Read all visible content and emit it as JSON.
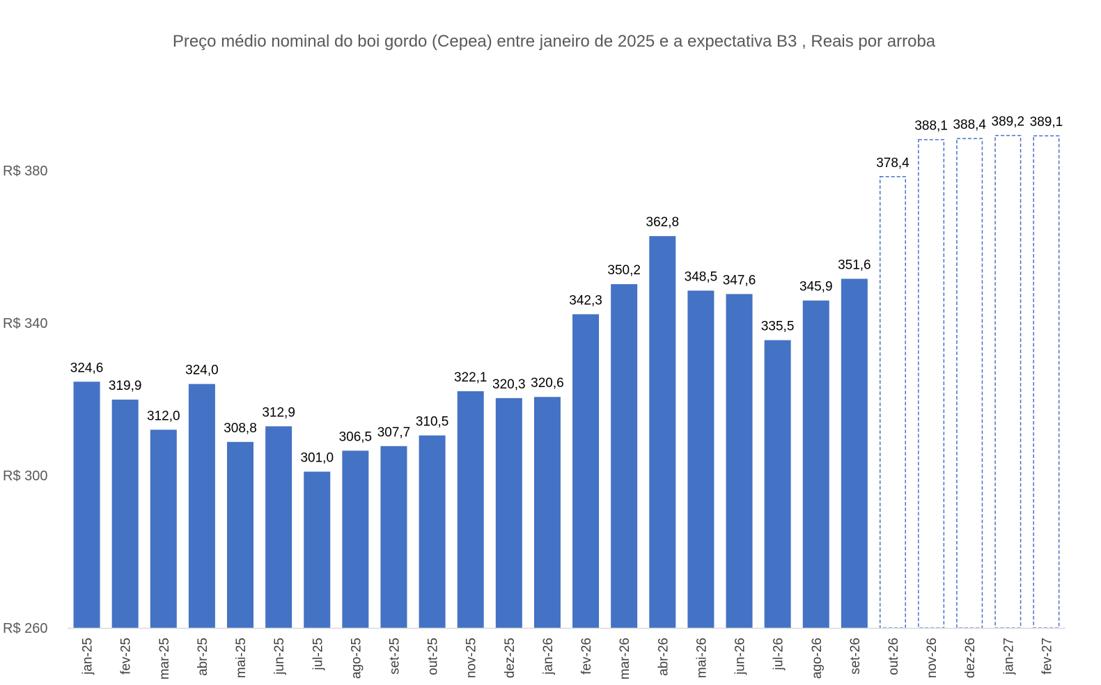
{
  "chart_data": {
    "type": "bar",
    "title": "Preço médio nominal do boi gordo (Cepea) entre janeiro de 2025 e a expectativa B3 , Reais por arroba",
    "xlabel": "",
    "ylabel": "",
    "ylim": [
      260,
      400
    ],
    "yticks": [
      260,
      300,
      340,
      380
    ],
    "ytick_prefix": "R$ ",
    "grid": false,
    "legend": "none",
    "categories": [
      "jan-25",
      "fev-25",
      "mar-25",
      "abr-25",
      "mai-25",
      "jun-25",
      "jul-25",
      "ago-25",
      "set-25",
      "out-25",
      "nov-25",
      "dez-25",
      "jan-26",
      "fev-26",
      "mar-26",
      "abr-26",
      "mai-26",
      "jun-26",
      "jul-26",
      "ago-26",
      "set-26",
      "out-26",
      "nov-26",
      "dez-26",
      "jan-27",
      "fev-27"
    ],
    "values": [
      324.6,
      319.9,
      312.0,
      324.0,
      308.8,
      312.9,
      301.0,
      306.5,
      307.7,
      310.5,
      322.1,
      320.3,
      320.6,
      342.3,
      350.2,
      362.8,
      348.5,
      347.6,
      335.5,
      345.9,
      351.6,
      378.4,
      388.1,
      388.4,
      389.2,
      389.1
    ],
    "value_labels": [
      "324,6",
      "319,9",
      "312,0",
      "324,0",
      "308,8",
      "312,9",
      "301,0",
      "306,5",
      "307,7",
      "310,5",
      "322,1",
      "320,3",
      "320,6",
      "342,3",
      "350,2",
      "362,8",
      "348,5",
      "347,6",
      "335,5",
      "345,9",
      "351,6",
      "378,4",
      "388,1",
      "388,4",
      "389,2",
      "389,1"
    ],
    "projected": [
      false,
      false,
      false,
      false,
      false,
      false,
      false,
      false,
      false,
      false,
      false,
      false,
      false,
      false,
      false,
      false,
      false,
      false,
      false,
      false,
      false,
      true,
      true,
      true,
      true,
      true
    ],
    "colors": {
      "bar": "#4472C4",
      "projected_outline": "#4472C4",
      "axis": "#D9D9D9"
    }
  }
}
